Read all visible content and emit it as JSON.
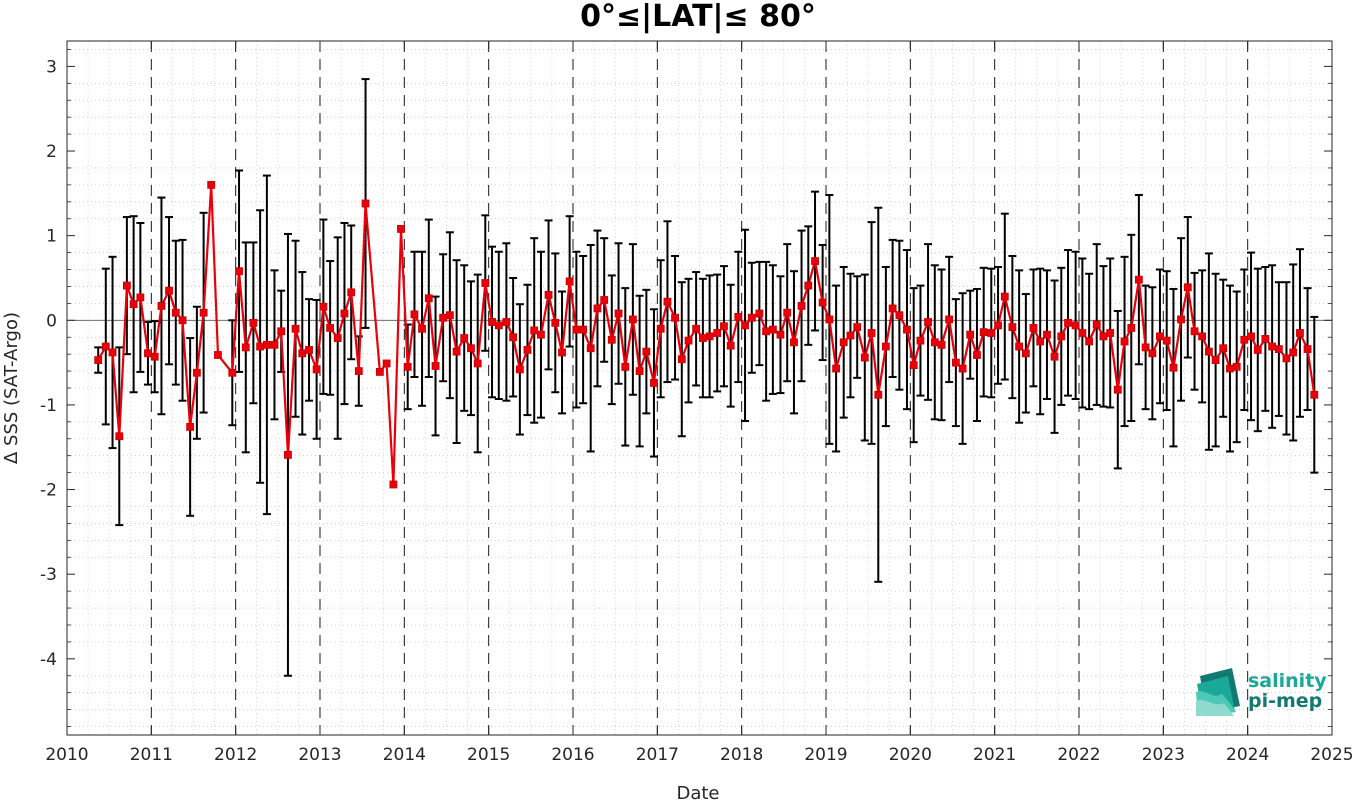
{
  "chart_data": {
    "type": "line",
    "title": "0°≤|LAT|≤ 80°",
    "xlabel": "Date",
    "ylabel": "Δ SSS (SAT-Argo)",
    "xlim": [
      2010,
      2025
    ],
    "ylim": [
      -4.9,
      3.3
    ],
    "x_ticks": [
      "2010",
      "2011",
      "2012",
      "2013",
      "2014",
      "2015",
      "2016",
      "2017",
      "2018",
      "2019",
      "2020",
      "2021",
      "2022",
      "2023",
      "2024",
      "2025"
    ],
    "y_ticks": [
      "3",
      "2",
      "1",
      "0",
      "-1",
      "-2",
      "-3",
      "-4"
    ],
    "grid": "dotted minor grid, dashed vertical lines at year boundaries",
    "colors": {
      "mean_line": "#e8000b",
      "error_bars": "#000000",
      "logo": "#1aa898"
    },
    "series": [
      {
        "points": [
          {
            "x": 2010.37,
            "y": -0.47,
            "err": 0.15
          },
          {
            "x": 2010.46,
            "y": -0.31,
            "err": 0.92
          },
          {
            "x": 2010.54,
            "y": -0.38,
            "err": 1.13
          },
          {
            "x": 2010.62,
            "y": -1.37,
            "err": 1.05
          },
          {
            "x": 2010.71,
            "y": 0.41,
            "err": 0.81
          },
          {
            "x": 2010.79,
            "y": 0.19,
            "err": 1.04
          },
          {
            "x": 2010.87,
            "y": 0.27,
            "err": 0.88
          },
          {
            "x": 2010.96,
            "y": -0.39,
            "err": 0.37
          },
          {
            "x": 2011.04,
            "y": -0.43,
            "err": 0.42
          },
          {
            "x": 2011.12,
            "y": 0.17,
            "err": 1.28
          },
          {
            "x": 2011.21,
            "y": 0.35,
            "err": 0.87
          },
          {
            "x": 2011.29,
            "y": 0.09,
            "err": 0.85
          },
          {
            "x": 2011.37,
            "y": 0.0,
            "err": 0.95
          },
          {
            "x": 2011.46,
            "y": -1.26,
            "err": 1.05
          },
          {
            "x": 2011.54,
            "y": -0.62,
            "err": 0.78
          },
          {
            "x": 2011.62,
            "y": 0.09,
            "err": 1.18
          },
          {
            "x": 2011.71,
            "y": 1.6,
            "err": 0.0
          },
          {
            "x": 2011.79,
            "y": -0.41,
            "err": 0.0
          },
          {
            "x": 2011.96,
            "y": -0.62,
            "err": 0.62
          },
          {
            "x": 2012.04,
            "y": 0.58,
            "err": 1.19
          },
          {
            "x": 2012.12,
            "y": -0.32,
            "err": 1.24
          },
          {
            "x": 2012.21,
            "y": -0.03,
            "err": 0.95
          },
          {
            "x": 2012.29,
            "y": -0.31,
            "err": 1.61
          },
          {
            "x": 2012.37,
            "y": -0.29,
            "err": 2.0
          },
          {
            "x": 2012.46,
            "y": -0.29,
            "err": 0.88
          },
          {
            "x": 2012.54,
            "y": -0.13,
            "err": 0.48
          },
          {
            "x": 2012.62,
            "y": -1.59,
            "err": 2.61
          },
          {
            "x": 2012.71,
            "y": -0.1,
            "err": 1.04
          },
          {
            "x": 2012.79,
            "y": -0.39,
            "err": 0.96
          },
          {
            "x": 2012.87,
            "y": -0.35,
            "err": 0.6
          },
          {
            "x": 2012.96,
            "y": -0.58,
            "err": 0.82
          },
          {
            "x": 2013.04,
            "y": 0.16,
            "err": 1.03
          },
          {
            "x": 2013.12,
            "y": -0.09,
            "err": 0.79
          },
          {
            "x": 2013.21,
            "y": -0.21,
            "err": 1.19
          },
          {
            "x": 2013.29,
            "y": 0.08,
            "err": 1.07
          },
          {
            "x": 2013.37,
            "y": 0.33,
            "err": 0.79
          },
          {
            "x": 2013.46,
            "y": -0.6,
            "err": 0.41
          },
          {
            "x": 2013.54,
            "y": 1.38,
            "err": 1.47
          },
          {
            "x": 2013.71,
            "y": -0.61,
            "err": 0.0
          },
          {
            "x": 2013.79,
            "y": -0.51,
            "err": 0.0
          },
          {
            "x": 2013.87,
            "y": -1.94,
            "err": 0.0
          },
          {
            "x": 2013.96,
            "y": 1.08,
            "err": 0.0
          },
          {
            "x": 2014.04,
            "y": -0.55,
            "err": 0.5
          },
          {
            "x": 2014.12,
            "y": 0.07,
            "err": 0.74
          },
          {
            "x": 2014.21,
            "y": -0.1,
            "err": 0.91
          },
          {
            "x": 2014.29,
            "y": 0.26,
            "err": 0.93
          },
          {
            "x": 2014.37,
            "y": -0.54,
            "err": 0.82
          },
          {
            "x": 2014.46,
            "y": 0.03,
            "err": 0.75
          },
          {
            "x": 2014.54,
            "y": 0.06,
            "err": 0.98
          },
          {
            "x": 2014.62,
            "y": -0.37,
            "err": 1.08
          },
          {
            "x": 2014.71,
            "y": -0.21,
            "err": 0.86
          },
          {
            "x": 2014.79,
            "y": -0.33,
            "err": 0.79
          },
          {
            "x": 2014.87,
            "y": -0.51,
            "err": 1.05
          },
          {
            "x": 2014.96,
            "y": 0.44,
            "err": 0.8
          },
          {
            "x": 2015.04,
            "y": -0.02,
            "err": 0.89
          },
          {
            "x": 2015.12,
            "y": -0.06,
            "err": 0.87
          },
          {
            "x": 2015.21,
            "y": -0.02,
            "err": 0.93
          },
          {
            "x": 2015.29,
            "y": -0.2,
            "err": 0.7
          },
          {
            "x": 2015.37,
            "y": -0.58,
            "err": 0.77
          },
          {
            "x": 2015.46,
            "y": -0.35,
            "err": 0.77
          },
          {
            "x": 2015.54,
            "y": -0.12,
            "err": 1.09
          },
          {
            "x": 2015.62,
            "y": -0.17,
            "err": 0.98
          },
          {
            "x": 2015.71,
            "y": 0.3,
            "err": 0.88
          },
          {
            "x": 2015.79,
            "y": -0.03,
            "err": 0.82
          },
          {
            "x": 2015.87,
            "y": -0.38,
            "err": 0.72
          },
          {
            "x": 2015.96,
            "y": 0.46,
            "err": 0.77
          },
          {
            "x": 2016.04,
            "y": -0.11,
            "err": 0.92
          },
          {
            "x": 2016.12,
            "y": -0.11,
            "err": 0.87
          },
          {
            "x": 2016.21,
            "y": -0.33,
            "err": 1.22
          },
          {
            "x": 2016.29,
            "y": 0.14,
            "err": 0.92
          },
          {
            "x": 2016.37,
            "y": 0.24,
            "err": 0.73
          },
          {
            "x": 2016.46,
            "y": -0.23,
            "err": 0.76
          },
          {
            "x": 2016.54,
            "y": 0.08,
            "err": 0.83
          },
          {
            "x": 2016.62,
            "y": -0.55,
            "err": 0.93
          },
          {
            "x": 2016.71,
            "y": 0.01,
            "err": 0.89
          },
          {
            "x": 2016.79,
            "y": -0.6,
            "err": 0.89
          },
          {
            "x": 2016.87,
            "y": -0.37,
            "err": 0.73
          },
          {
            "x": 2016.96,
            "y": -0.74,
            "err": 0.87
          },
          {
            "x": 2017.04,
            "y": -0.1,
            "err": 0.81
          },
          {
            "x": 2017.12,
            "y": 0.22,
            "err": 0.95
          },
          {
            "x": 2017.21,
            "y": 0.03,
            "err": 0.73
          },
          {
            "x": 2017.29,
            "y": -0.46,
            "err": 0.91
          },
          {
            "x": 2017.37,
            "y": -0.24,
            "err": 0.73
          },
          {
            "x": 2017.46,
            "y": -0.1,
            "err": 0.67
          },
          {
            "x": 2017.54,
            "y": -0.21,
            "err": 0.7
          },
          {
            "x": 2017.62,
            "y": -0.19,
            "err": 0.72
          },
          {
            "x": 2017.71,
            "y": -0.15,
            "err": 0.69
          },
          {
            "x": 2017.79,
            "y": -0.07,
            "err": 0.71
          },
          {
            "x": 2017.87,
            "y": -0.3,
            "err": 0.72
          },
          {
            "x": 2017.96,
            "y": 0.04,
            "err": 0.77
          },
          {
            "x": 2018.04,
            "y": -0.06,
            "err": 1.13
          },
          {
            "x": 2018.12,
            "y": 0.03,
            "err": 0.65
          },
          {
            "x": 2018.21,
            "y": 0.08,
            "err": 0.61
          },
          {
            "x": 2018.29,
            "y": -0.13,
            "err": 0.82
          },
          {
            "x": 2018.37,
            "y": -0.11,
            "err": 0.76
          },
          {
            "x": 2018.46,
            "y": -0.17,
            "err": 0.69
          },
          {
            "x": 2018.54,
            "y": 0.09,
            "err": 0.81
          },
          {
            "x": 2018.62,
            "y": -0.26,
            "err": 0.84
          },
          {
            "x": 2018.71,
            "y": 0.17,
            "err": 0.89
          },
          {
            "x": 2018.79,
            "y": 0.41,
            "err": 0.7
          },
          {
            "x": 2018.87,
            "y": 0.7,
            "err": 0.82
          },
          {
            "x": 2018.96,
            "y": 0.21,
            "err": 0.68
          },
          {
            "x": 2019.04,
            "y": 0.01,
            "err": 1.47
          },
          {
            "x": 2019.12,
            "y": -0.57,
            "err": 0.98
          },
          {
            "x": 2019.21,
            "y": -0.26,
            "err": 0.89
          },
          {
            "x": 2019.29,
            "y": -0.18,
            "err": 0.73
          },
          {
            "x": 2019.37,
            "y": -0.08,
            "err": 0.6
          },
          {
            "x": 2019.46,
            "y": -0.44,
            "err": 0.98
          },
          {
            "x": 2019.54,
            "y": -0.15,
            "err": 1.31
          },
          {
            "x": 2019.62,
            "y": -0.88,
            "err": 2.21
          },
          {
            "x": 2019.71,
            "y": -0.31,
            "err": 0.94
          },
          {
            "x": 2019.79,
            "y": 0.14,
            "err": 0.81
          },
          {
            "x": 2019.87,
            "y": 0.06,
            "err": 0.88
          },
          {
            "x": 2019.96,
            "y": -0.11,
            "err": 0.94
          },
          {
            "x": 2020.04,
            "y": -0.53,
            "err": 0.91
          },
          {
            "x": 2020.12,
            "y": -0.24,
            "err": 0.65
          },
          {
            "x": 2020.21,
            "y": -0.02,
            "err": 0.92
          },
          {
            "x": 2020.29,
            "y": -0.26,
            "err": 0.91
          },
          {
            "x": 2020.37,
            "y": -0.29,
            "err": 0.89
          },
          {
            "x": 2020.46,
            "y": 0.01,
            "err": 0.74
          },
          {
            "x": 2020.54,
            "y": -0.5,
            "err": 0.75
          },
          {
            "x": 2020.62,
            "y": -0.57,
            "err": 0.89
          },
          {
            "x": 2020.71,
            "y": -0.17,
            "err": 0.52
          },
          {
            "x": 2020.79,
            "y": -0.41,
            "err": 0.78
          },
          {
            "x": 2020.87,
            "y": -0.14,
            "err": 0.76
          },
          {
            "x": 2020.96,
            "y": -0.15,
            "err": 0.76
          },
          {
            "x": 2021.04,
            "y": -0.06,
            "err": 0.69
          },
          {
            "x": 2021.12,
            "y": 0.28,
            "err": 0.98
          },
          {
            "x": 2021.21,
            "y": -0.08,
            "err": 0.84
          },
          {
            "x": 2021.29,
            "y": -0.31,
            "err": 0.9
          },
          {
            "x": 2021.37,
            "y": -0.39,
            "err": 0.7
          },
          {
            "x": 2021.46,
            "y": -0.09,
            "err": 0.69
          },
          {
            "x": 2021.54,
            "y": -0.25,
            "err": 0.86
          },
          {
            "x": 2021.62,
            "y": -0.17,
            "err": 0.76
          },
          {
            "x": 2021.71,
            "y": -0.43,
            "err": 0.9
          },
          {
            "x": 2021.79,
            "y": -0.19,
            "err": 0.81
          },
          {
            "x": 2021.87,
            "y": -0.03,
            "err": 0.86
          },
          {
            "x": 2021.96,
            "y": -0.06,
            "err": 0.87
          },
          {
            "x": 2022.04,
            "y": -0.15,
            "err": 0.88
          },
          {
            "x": 2022.12,
            "y": -0.25,
            "err": 0.8
          },
          {
            "x": 2022.21,
            "y": -0.05,
            "err": 0.95
          },
          {
            "x": 2022.29,
            "y": -0.19,
            "err": 0.83
          },
          {
            "x": 2022.37,
            "y": -0.15,
            "err": 0.88
          },
          {
            "x": 2022.46,
            "y": -0.82,
            "err": 0.93
          },
          {
            "x": 2022.54,
            "y": -0.25,
            "err": 1.0
          },
          {
            "x": 2022.62,
            "y": -0.09,
            "err": 1.1
          },
          {
            "x": 2022.71,
            "y": 0.48,
            "err": 1.0
          },
          {
            "x": 2022.79,
            "y": -0.32,
            "err": 0.73
          },
          {
            "x": 2022.87,
            "y": -0.39,
            "err": 0.78
          },
          {
            "x": 2022.96,
            "y": -0.19,
            "err": 0.79
          },
          {
            "x": 2023.04,
            "y": -0.24,
            "err": 0.82
          },
          {
            "x": 2023.12,
            "y": -0.56,
            "err": 0.93
          },
          {
            "x": 2023.21,
            "y": 0.01,
            "err": 0.96
          },
          {
            "x": 2023.29,
            "y": 0.39,
            "err": 0.83
          },
          {
            "x": 2023.37,
            "y": -0.13,
            "err": 0.69
          },
          {
            "x": 2023.46,
            "y": -0.19,
            "err": 0.78
          },
          {
            "x": 2023.54,
            "y": -0.37,
            "err": 1.16
          },
          {
            "x": 2023.62,
            "y": -0.47,
            "err": 1.02
          },
          {
            "x": 2023.71,
            "y": -0.33,
            "err": 0.81
          },
          {
            "x": 2023.79,
            "y": -0.57,
            "err": 0.98
          },
          {
            "x": 2023.87,
            "y": -0.55,
            "err": 0.89
          },
          {
            "x": 2023.96,
            "y": -0.23,
            "err": 0.83
          },
          {
            "x": 2024.04,
            "y": -0.19,
            "err": 0.99
          },
          {
            "x": 2024.12,
            "y": -0.35,
            "err": 0.96
          },
          {
            "x": 2024.21,
            "y": -0.22,
            "err": 0.85
          },
          {
            "x": 2024.29,
            "y": -0.31,
            "err": 0.96
          },
          {
            "x": 2024.37,
            "y": -0.34,
            "err": 0.79
          },
          {
            "x": 2024.46,
            "y": -0.45,
            "err": 0.9
          },
          {
            "x": 2024.54,
            "y": -0.38,
            "err": 1.04
          },
          {
            "x": 2024.62,
            "y": -0.15,
            "err": 0.99
          },
          {
            "x": 2024.71,
            "y": -0.34,
            "err": 0.72
          },
          {
            "x": 2024.79,
            "y": -0.88,
            "err": 0.92
          }
        ]
      }
    ]
  },
  "logo": {
    "line1": "salinity",
    "line2": "pi-mep"
  }
}
